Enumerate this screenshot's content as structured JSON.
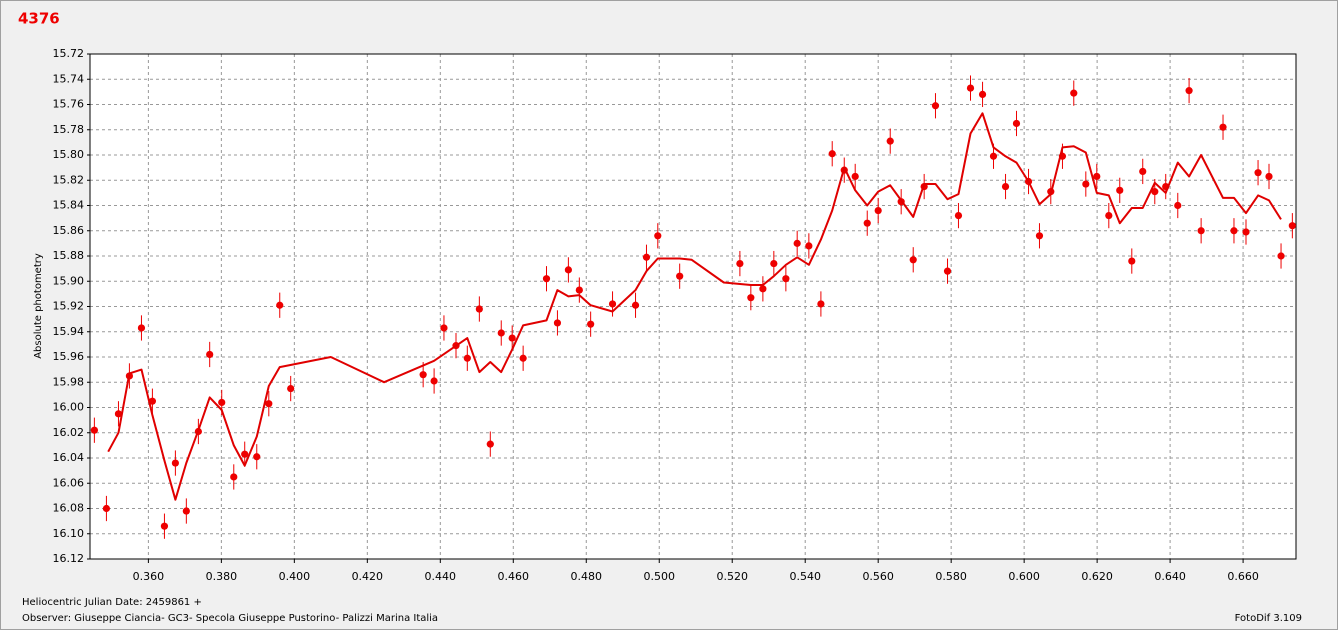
{
  "chart_data": {
    "type": "scatter",
    "title": "4376",
    "y_label": "Absolute photometry",
    "x_label": "Heliocentric Julian Date: 2459861 +",
    "footer": "Observer: Giuseppe Ciancia- GC3- Specola Giuseppe Pustorino- Palizzi Marina Italia",
    "software": "FotoDif 3.109",
    "grid": true,
    "y_inverted": true,
    "xlim": [
      0.344,
      0.6745
    ],
    "ylim": [
      15.72,
      16.12
    ],
    "xticks": [
      {
        "value": 0.36,
        "label": "0.360"
      },
      {
        "value": 0.38,
        "label": "0.380"
      },
      {
        "value": 0.4,
        "label": "0.400"
      },
      {
        "value": 0.42,
        "label": "0.420"
      },
      {
        "value": 0.44,
        "label": "0.440"
      },
      {
        "value": 0.46,
        "label": "0.460"
      },
      {
        "value": 0.48,
        "label": "0.480"
      },
      {
        "value": 0.5,
        "label": "0.500"
      },
      {
        "value": 0.52,
        "label": "0.520"
      },
      {
        "value": 0.54,
        "label": "0.540"
      },
      {
        "value": 0.56,
        "label": "0.560"
      },
      {
        "value": 0.58,
        "label": "0.580"
      },
      {
        "value": 0.6,
        "label": "0.600"
      },
      {
        "value": 0.62,
        "label": "0.620"
      },
      {
        "value": 0.64,
        "label": "0.640"
      },
      {
        "value": 0.66,
        "label": "0.660"
      }
    ],
    "yticks": [
      15.72,
      15.74,
      15.76,
      15.78,
      {
        "value": 15.8,
        "label": "15.80"
      },
      15.82,
      15.84,
      15.86,
      15.88,
      {
        "value": 15.9,
        "label": "15.90"
      },
      15.92,
      15.94,
      15.96,
      15.98,
      {
        "value": 16,
        "label": "16.00"
      },
      16.02,
      16.04,
      16.06,
      16.08,
      {
        "value": 16.1,
        "label": "16.10"
      },
      16.12
    ],
    "series": [
      {
        "type": "scatter",
        "color": "#ee0000",
        "error": 0.01,
        "x": [
          0.3452,
          0.3485,
          0.3518,
          0.3548,
          0.3581,
          0.3611,
          0.3644,
          0.3674,
          0.3704,
          0.3737,
          0.3768,
          0.3801,
          0.3834,
          0.3864,
          0.3897,
          0.393,
          0.396,
          0.399,
          0.4353,
          0.4383,
          0.441,
          0.4443,
          0.4474,
          0.4507,
          0.4537,
          0.4567,
          0.4597,
          0.4627,
          0.4691,
          0.4721,
          0.4751,
          0.4781,
          0.4812,
          0.4872,
          0.4935,
          0.4965,
          0.4996,
          0.5056,
          0.5221,
          0.5251,
          0.5284,
          0.5314,
          0.5347,
          0.5378,
          0.541,
          0.5443,
          0.5474,
          0.5507,
          0.5537,
          0.557,
          0.56,
          0.5633,
          0.5663,
          0.5696,
          0.5726,
          0.5757,
          0.579,
          0.582,
          0.5853,
          0.5886,
          0.5916,
          0.5949,
          0.5979,
          0.6012,
          0.6042,
          0.6073,
          0.6105,
          0.6136,
          0.6169,
          0.6199,
          0.6232,
          0.6262,
          0.6295,
          0.6325,
          0.6358,
          0.6388,
          0.6421,
          0.6452,
          0.6485,
          0.6545,
          0.6575,
          0.6608,
          0.6641,
          0.6671,
          0.6704,
          0.6735
        ],
        "values": [
          16.018,
          16.08,
          16.005,
          15.975,
          15.937,
          15.995,
          16.094,
          16.044,
          16.082,
          16.019,
          15.958,
          15.996,
          16.055,
          16.037,
          16.039,
          15.997,
          15.919,
          15.985,
          15.974,
          15.979,
          15.937,
          15.951,
          15.961,
          15.922,
          16.029,
          15.941,
          15.945,
          15.961,
          15.898,
          15.933,
          15.891,
          15.907,
          15.934,
          15.918,
          15.919,
          15.881,
          15.864,
          15.896,
          15.886,
          15.913,
          15.906,
          15.886,
          15.898,
          15.87,
          15.872,
          15.918,
          15.799,
          15.812,
          15.817,
          15.854,
          15.844,
          15.789,
          15.837,
          15.883,
          15.825,
          15.761,
          15.892,
          15.848,
          15.747,
          15.752,
          15.801,
          15.825,
          15.775,
          15.821,
          15.864,
          15.829,
          15.801,
          15.751,
          15.823,
          15.817,
          15.848,
          15.828,
          15.884,
          15.813,
          15.829,
          15.825,
          15.84,
          15.749,
          15.86,
          15.778,
          15.86,
          15.861,
          15.814,
          15.817,
          15.88,
          15.856
        ]
      },
      {
        "type": "line",
        "color": "#e00000",
        "x": [
          0.349,
          0.3518,
          0.3548,
          0.3581,
          0.3611,
          0.3644,
          0.3674,
          0.3704,
          0.3737,
          0.3768,
          0.3801,
          0.3834,
          0.3864,
          0.3897,
          0.393,
          0.396,
          0.41,
          0.4246,
          0.4383,
          0.4474,
          0.4507,
          0.4537,
          0.4567,
          0.4597,
          0.4627,
          0.4691,
          0.4721,
          0.4751,
          0.4781,
          0.4812,
          0.4872,
          0.4935,
          0.4965,
          0.4996,
          0.5056,
          0.5089,
          0.5177,
          0.5251,
          0.5284,
          0.5314,
          0.5347,
          0.5378,
          0.541,
          0.5443,
          0.5474,
          0.5507,
          0.5537,
          0.557,
          0.56,
          0.5633,
          0.5663,
          0.5696,
          0.5726,
          0.5757,
          0.579,
          0.582,
          0.5853,
          0.5886,
          0.5916,
          0.5949,
          0.5979,
          0.6012,
          0.6042,
          0.6073,
          0.6105,
          0.6136,
          0.6169,
          0.6199,
          0.6232,
          0.6262,
          0.6295,
          0.6325,
          0.6358,
          0.6388,
          0.6421,
          0.6452,
          0.6485,
          0.6545,
          0.6575,
          0.6608,
          0.6641,
          0.6671,
          0.6704
        ],
        "values": [
          16.035,
          16.02,
          15.973,
          15.97,
          16.006,
          16.042,
          16.073,
          16.044,
          16.018,
          15.992,
          16.002,
          16.03,
          16.046,
          16.023,
          15.983,
          15.968,
          15.96,
          15.98,
          15.963,
          15.945,
          15.972,
          15.964,
          15.972,
          15.954,
          15.935,
          15.931,
          15.907,
          15.912,
          15.911,
          15.919,
          15.924,
          15.907,
          15.892,
          15.882,
          15.882,
          15.883,
          15.901,
          15.903,
          15.903,
          15.896,
          15.887,
          15.881,
          15.887,
          15.867,
          15.844,
          15.81,
          15.828,
          15.84,
          15.829,
          15.824,
          15.836,
          15.849,
          15.823,
          15.823,
          15.835,
          15.831,
          15.783,
          15.767,
          15.794,
          15.801,
          15.806,
          15.821,
          15.839,
          15.831,
          15.794,
          15.793,
          15.798,
          15.83,
          15.832,
          15.854,
          15.842,
          15.842,
          15.822,
          15.83,
          15.806,
          15.817,
          15.8,
          15.834,
          15.834,
          15.846,
          15.832,
          15.836,
          15.851
        ]
      }
    ]
  }
}
